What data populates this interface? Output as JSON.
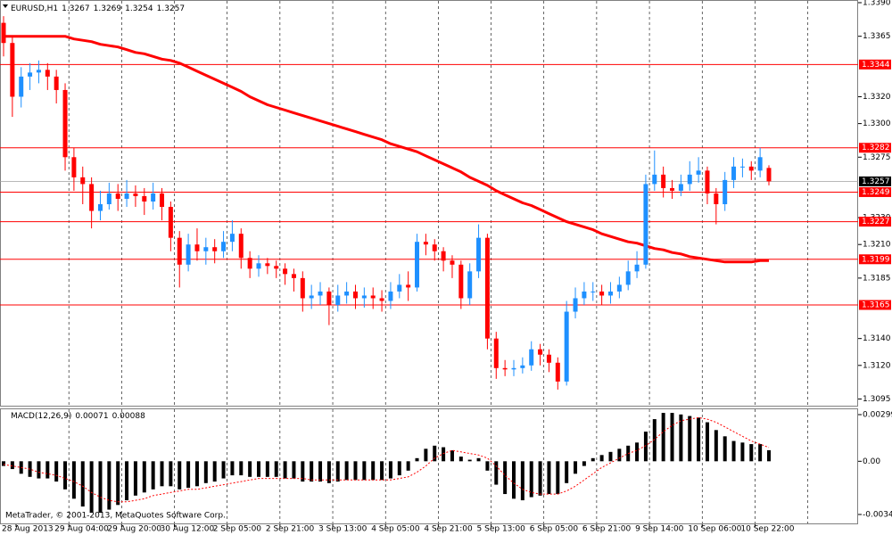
{
  "chart_data": [
    {
      "type": "candlestick",
      "title": "EURUSD,H1",
      "header_values": [
        1.3267,
        1.3269,
        1.3254,
        1.3257
      ],
      "categories": [
        "28 Aug 2013",
        null,
        null,
        null,
        null,
        null,
        "29 Aug 04:00",
        null,
        null,
        null,
        null,
        null,
        "29 Aug 20:00",
        null,
        null,
        null,
        null,
        null,
        "30 Aug 12:00",
        null,
        null,
        null,
        null,
        null,
        "2 Sep 05:00",
        null,
        null,
        null,
        null,
        null,
        "2 Sep 21:00",
        null,
        null,
        null,
        null,
        null,
        "3 Sep 13:00",
        null,
        null,
        null,
        null,
        null,
        "4 Sep 05:00",
        null,
        null,
        null,
        null,
        null,
        "4 Sep 21:00",
        null,
        null,
        null,
        null,
        null,
        "5 Sep 13:00",
        null,
        null,
        null,
        null,
        null,
        "6 Sep 05:00",
        null,
        null,
        null,
        null,
        null,
        "6 Sep 21:00",
        null,
        null,
        null,
        null,
        null,
        "9 Sep 14:00",
        null,
        null,
        null,
        null,
        null,
        "10 Sep 06:00",
        null,
        null,
        null,
        null,
        null,
        "10 Sep 22:00",
        null,
        null,
        null
      ],
      "open": [
        1.3375,
        1.336,
        1.332,
        1.3335,
        1.3338,
        1.334,
        1.3335,
        1.3325,
        1.3275,
        1.326,
        1.3255,
        1.3235,
        1.324,
        1.3248,
        1.3244,
        1.3248,
        1.3246,
        1.3242,
        1.3248,
        1.3238,
        1.3215,
        1.3195,
        1.321,
        1.3205,
        1.3208,
        1.3205,
        1.3212,
        1.3218,
        1.32,
        1.3192,
        1.3196,
        1.3194,
        1.3192,
        1.3188,
        1.3185,
        1.317,
        1.3172,
        1.3175,
        1.3165,
        1.3172,
        1.3175,
        1.317,
        1.3172,
        1.317,
        1.3168,
        1.3175,
        1.318,
        1.3178,
        1.3212,
        1.321,
        1.3205,
        1.3198,
        1.3195,
        1.317,
        1.319,
        1.3215,
        1.314,
        1.3118,
        1.3117,
        1.3118,
        1.312,
        1.3132,
        1.3128,
        1.3122,
        1.3108,
        1.316,
        1.317,
        1.3175,
        1.3175,
        1.3172,
        1.3175,
        1.318,
        1.319,
        1.3195,
        1.3255,
        1.3262,
        1.3252,
        1.325,
        1.3255,
        1.3262,
        1.3265,
        1.3248,
        1.324,
        1.3258,
        1.3268,
        1.3268,
        1.3265,
        1.3267
      ],
      "high": [
        1.338,
        1.3365,
        1.3342,
        1.3345,
        1.3347,
        1.3345,
        1.334,
        1.333,
        1.3282,
        1.3268,
        1.326,
        1.325,
        1.3256,
        1.3255,
        1.3258,
        1.3254,
        1.3252,
        1.3256,
        1.3252,
        1.3242,
        1.322,
        1.3218,
        1.3222,
        1.3215,
        1.3214,
        1.322,
        1.3228,
        1.3222,
        1.3205,
        1.3202,
        1.32,
        1.3198,
        1.3196,
        1.3192,
        1.319,
        1.318,
        1.3182,
        1.3178,
        1.318,
        1.3182,
        1.318,
        1.3178,
        1.3178,
        1.3176,
        1.3182,
        1.3188,
        1.319,
        1.3218,
        1.3218,
        1.3214,
        1.3208,
        1.3202,
        1.3198,
        1.3196,
        1.3225,
        1.3218,
        1.3145,
        1.3124,
        1.3124,
        1.3126,
        1.3138,
        1.3136,
        1.3132,
        1.3126,
        1.3168,
        1.3178,
        1.3182,
        1.3182,
        1.318,
        1.3182,
        1.3186,
        1.3198,
        1.3205,
        1.3262,
        1.328,
        1.3268,
        1.3258,
        1.3262,
        1.3272,
        1.3275,
        1.3268,
        1.3252,
        1.3264,
        1.3275,
        1.3274,
        1.3272,
        1.3282,
        1.3269
      ],
      "low": [
        1.335,
        1.3305,
        1.3312,
        1.3325,
        1.333,
        1.3325,
        1.3315,
        1.3265,
        1.325,
        1.324,
        1.3222,
        1.3228,
        1.3236,
        1.3235,
        1.3238,
        1.3238,
        1.3232,
        1.3236,
        1.3228,
        1.3205,
        1.3178,
        1.319,
        1.3198,
        1.3195,
        1.3196,
        1.32,
        1.3205,
        1.3192,
        1.3185,
        1.3186,
        1.3188,
        1.3185,
        1.318,
        1.3175,
        1.316,
        1.3162,
        1.3165,
        1.315,
        1.316,
        1.3166,
        1.3162,
        1.3163,
        1.3162,
        1.316,
        1.3162,
        1.317,
        1.3168,
        1.3175,
        1.3202,
        1.3198,
        1.319,
        1.3185,
        1.3162,
        1.3165,
        1.3185,
        1.3132,
        1.311,
        1.3112,
        1.3112,
        1.3114,
        1.3116,
        1.312,
        1.3115,
        1.3102,
        1.3105,
        1.3155,
        1.3165,
        1.3168,
        1.3165,
        1.3166,
        1.317,
        1.3176,
        1.3185,
        1.3192,
        1.325,
        1.3245,
        1.3244,
        1.3246,
        1.325,
        1.3256,
        1.324,
        1.3225,
        1.3235,
        1.3252,
        1.326,
        1.3258,
        1.326,
        1.3254
      ],
      "close": [
        1.336,
        1.332,
        1.3335,
        1.3338,
        1.334,
        1.3335,
        1.3325,
        1.3275,
        1.326,
        1.3255,
        1.3235,
        1.324,
        1.3248,
        1.3244,
        1.3248,
        1.3246,
        1.3242,
        1.3248,
        1.3238,
        1.3215,
        1.3195,
        1.321,
        1.3205,
        1.3208,
        1.3205,
        1.3212,
        1.3218,
        1.32,
        1.3192,
        1.3196,
        1.3194,
        1.3192,
        1.3188,
        1.3185,
        1.317,
        1.3172,
        1.3175,
        1.3165,
        1.3172,
        1.3175,
        1.317,
        1.3172,
        1.317,
        1.3168,
        1.3175,
        1.318,
        1.3178,
        1.3212,
        1.321,
        1.3205,
        1.3198,
        1.3195,
        1.317,
        1.319,
        1.3215,
        1.314,
        1.3118,
        1.3117,
        1.3118,
        1.312,
        1.3132,
        1.3128,
        1.3122,
        1.3108,
        1.316,
        1.317,
        1.3175,
        1.3175,
        1.3172,
        1.3175,
        1.318,
        1.319,
        1.3195,
        1.3255,
        1.3262,
        1.3252,
        1.325,
        1.3255,
        1.3262,
        1.3265,
        1.3248,
        1.324,
        1.3258,
        1.3268,
        1.3268,
        1.3265,
        1.3275,
        1.3257
      ],
      "up_color": "#1e90ff",
      "down_color": "#ff0000",
      "ma": {
        "color": "#ff0000",
        "values": [
          1.3365,
          1.3365,
          1.3365,
          1.3365,
          1.3365,
          1.3365,
          1.3365,
          1.3365,
          1.3363,
          1.3362,
          1.3361,
          1.3359,
          1.3358,
          1.3357,
          1.3355,
          1.3353,
          1.3352,
          1.335,
          1.3348,
          1.3347,
          1.3345,
          1.3342,
          1.3339,
          1.3336,
          1.3333,
          1.333,
          1.3327,
          1.3324,
          1.332,
          1.3317,
          1.3314,
          1.3312,
          1.331,
          1.3308,
          1.3306,
          1.3304,
          1.3302,
          1.33,
          1.3298,
          1.3296,
          1.3294,
          1.3292,
          1.329,
          1.3288,
          1.3285,
          1.3283,
          1.3281,
          1.3279,
          1.3276,
          1.3273,
          1.327,
          1.3267,
          1.3264,
          1.326,
          1.3257,
          1.3254,
          1.325,
          1.3247,
          1.3244,
          1.3241,
          1.3239,
          1.3236,
          1.3233,
          1.323,
          1.3227,
          1.3225,
          1.3223,
          1.3221,
          1.3218,
          1.3216,
          1.3214,
          1.3212,
          1.3211,
          1.3209,
          1.3207,
          1.3206,
          1.3204,
          1.3203,
          1.3201,
          1.32,
          1.3199,
          1.3198,
          1.3197,
          1.3197,
          1.3197,
          1.3197,
          1.3198,
          1.3198
        ]
      },
      "levels": [
        1.3344,
        1.3282,
        1.3249,
        1.3227,
        1.3199,
        1.3165
      ],
      "level_color": "#ff0000",
      "current_price": 1.3257,
      "ylim": [
        1.309,
        1.3392
      ],
      "yticks": [
        {
          "value": 1.339,
          "label": "1.3390"
        },
        1.3365,
        {
          "value": 1.332,
          "label": "1.3320"
        },
        {
          "value": 1.33,
          "label": "1.3300"
        },
        1.3275,
        {
          "value": 1.323,
          "label": "1.3230"
        },
        {
          "value": 1.321,
          "label": "1.3210"
        },
        1.3185,
        {
          "value": 1.314,
          "label": "1.3140"
        },
        {
          "value": 1.312,
          "label": "1.3120"
        },
        1.3095
      ],
      "grid": true
    },
    {
      "type": "macd",
      "title": "MACD(12,26,9)",
      "header_values": [
        0.00071,
        0.00088
      ],
      "histogram": {
        "color": "#000000",
        "values": [
          -0.0003,
          -0.0005,
          -0.0008,
          -0.001,
          -0.0011,
          -0.0011,
          -0.0013,
          -0.0018,
          -0.0024,
          -0.0029,
          -0.0033,
          -0.0033,
          -0.0031,
          -0.0028,
          -0.0025,
          -0.0022,
          -0.002,
          -0.0018,
          -0.0016,
          -0.0016,
          -0.0018,
          -0.0017,
          -0.0016,
          -0.0014,
          -0.0013,
          -0.0011,
          -0.0009,
          -0.0009,
          -0.001,
          -0.001,
          -0.001,
          -0.001,
          -0.0011,
          -0.0011,
          -0.0013,
          -0.0013,
          -0.0013,
          -0.0014,
          -0.0013,
          -0.0012,
          -0.0012,
          -0.0012,
          -0.0012,
          -0.0012,
          -0.0011,
          -0.0009,
          -0.0006,
          0.0002,
          0.0008,
          0.001,
          0.0009,
          0.0007,
          0.0003,
          0.0001,
          0.0002,
          -0.0006,
          -0.0015,
          -0.0021,
          -0.0024,
          -0.0025,
          -0.0023,
          -0.0022,
          -0.0021,
          -0.0021,
          -0.0014,
          -0.0008,
          -0.0003,
          0.0002,
          0.0004,
          0.0006,
          0.0008,
          0.001,
          0.0012,
          0.0019,
          0.0027,
          0.0031,
          0.0031,
          0.003,
          0.0029,
          0.0028,
          0.0025,
          0.002,
          0.0016,
          0.0013,
          0.0012,
          0.0011,
          0.0011,
          0.00071
        ]
      },
      "signal": {
        "color": "#ff0000",
        "values": [
          -0.0002,
          -0.0003,
          -0.0004,
          -0.0005,
          -0.0007,
          -0.0008,
          -0.0009,
          -0.0011,
          -0.0013,
          -0.0016,
          -0.002,
          -0.0023,
          -0.0025,
          -0.0026,
          -0.0026,
          -0.0025,
          -0.0024,
          -0.0022,
          -0.0021,
          -0.002,
          -0.0019,
          -0.0018,
          -0.0018,
          -0.0017,
          -0.0016,
          -0.0015,
          -0.0014,
          -0.0013,
          -0.0012,
          -0.0011,
          -0.0011,
          -0.0011,
          -0.0011,
          -0.0011,
          -0.0011,
          -0.0012,
          -0.0012,
          -0.0012,
          -0.0012,
          -0.0012,
          -0.0012,
          -0.0012,
          -0.0012,
          -0.0012,
          -0.0012,
          -0.0011,
          -0.001,
          -0.0007,
          -0.0003,
          0.0002,
          0.0005,
          0.0007,
          0.0006,
          0.0005,
          0.0004,
          0.0002,
          -0.0003,
          -0.0009,
          -0.0014,
          -0.0018,
          -0.002,
          -0.0021,
          -0.0021,
          -0.0021,
          -0.0019,
          -0.0016,
          -0.0012,
          -0.0008,
          -0.0004,
          -0.0001,
          0.0002,
          0.0005,
          0.0007,
          0.001,
          0.0014,
          0.0019,
          0.0023,
          0.0026,
          0.0027,
          0.0028,
          0.0027,
          0.0025,
          0.0022,
          0.0019,
          0.0016,
          0.0013,
          0.0011,
          0.00088
        ]
      },
      "ylim": [
        -0.00404,
        0.00339
      ],
      "yticks": [
        0.00299,
        {
          "value": 0,
          "label": "0.00"
        },
        -0.00341
      ],
      "copyright": "MetaTrader, © 2001-2013, MetaQuotes Software Corp."
    }
  ]
}
